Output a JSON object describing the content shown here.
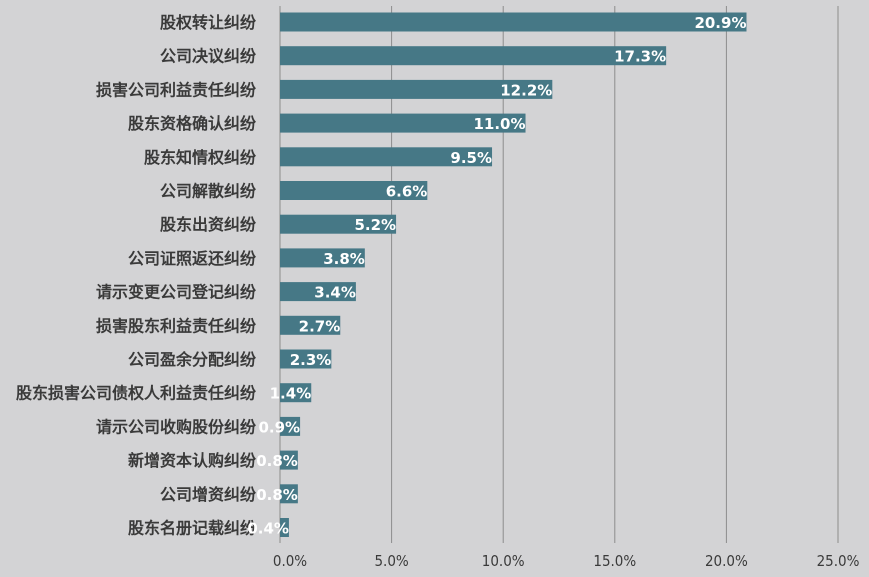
{
  "chart_data": {
    "type": "bar",
    "orientation": "horizontal",
    "categories": [
      "股权转让纠纷",
      "公司决议纠纷",
      "损害公司利益责任纠纷",
      "股东资格确认纠纷",
      "股东知情权纠纷",
      "公司解散纠纷",
      "股东出资纠纷",
      "公司证照返还纠纷",
      "请示变更公司登记纠纷",
      "损害股东利益责任纠纷",
      "公司盈余分配纠纷",
      "股东损害公司债权人利益责任纠纷",
      "请示公司收购股份纠纷",
      "新增资本认购纠纷",
      "公司增资纠纷",
      "股东名册记载纠纷"
    ],
    "values": [
      20.9,
      17.3,
      12.2,
      11.0,
      9.5,
      6.6,
      5.2,
      3.8,
      3.4,
      2.7,
      2.3,
      1.4,
      0.9,
      0.8,
      0.8,
      0.4
    ],
    "value_labels": [
      "20.9%",
      "17.3%",
      "12.2%",
      "11.0%",
      "9.5%",
      "6.6%",
      "5.2%",
      "3.8%",
      "3.4%",
      "2.7%",
      "2.3%",
      "1.4%",
      "0.9%",
      "0.8%",
      "0.8%",
      "0.4%"
    ],
    "xlim": [
      0,
      25
    ],
    "xticks": [
      0,
      5,
      10,
      15,
      20,
      25
    ],
    "xtick_labels": [
      "0.0%",
      "5.0%",
      "10.0%",
      "15.0%",
      "20.0%",
      "25.0%"
    ],
    "title": "",
    "xlabel": "",
    "ylabel": "",
    "grid": "vertical",
    "bar_color": "#467886",
    "background_color": "#d3d3d5"
  }
}
